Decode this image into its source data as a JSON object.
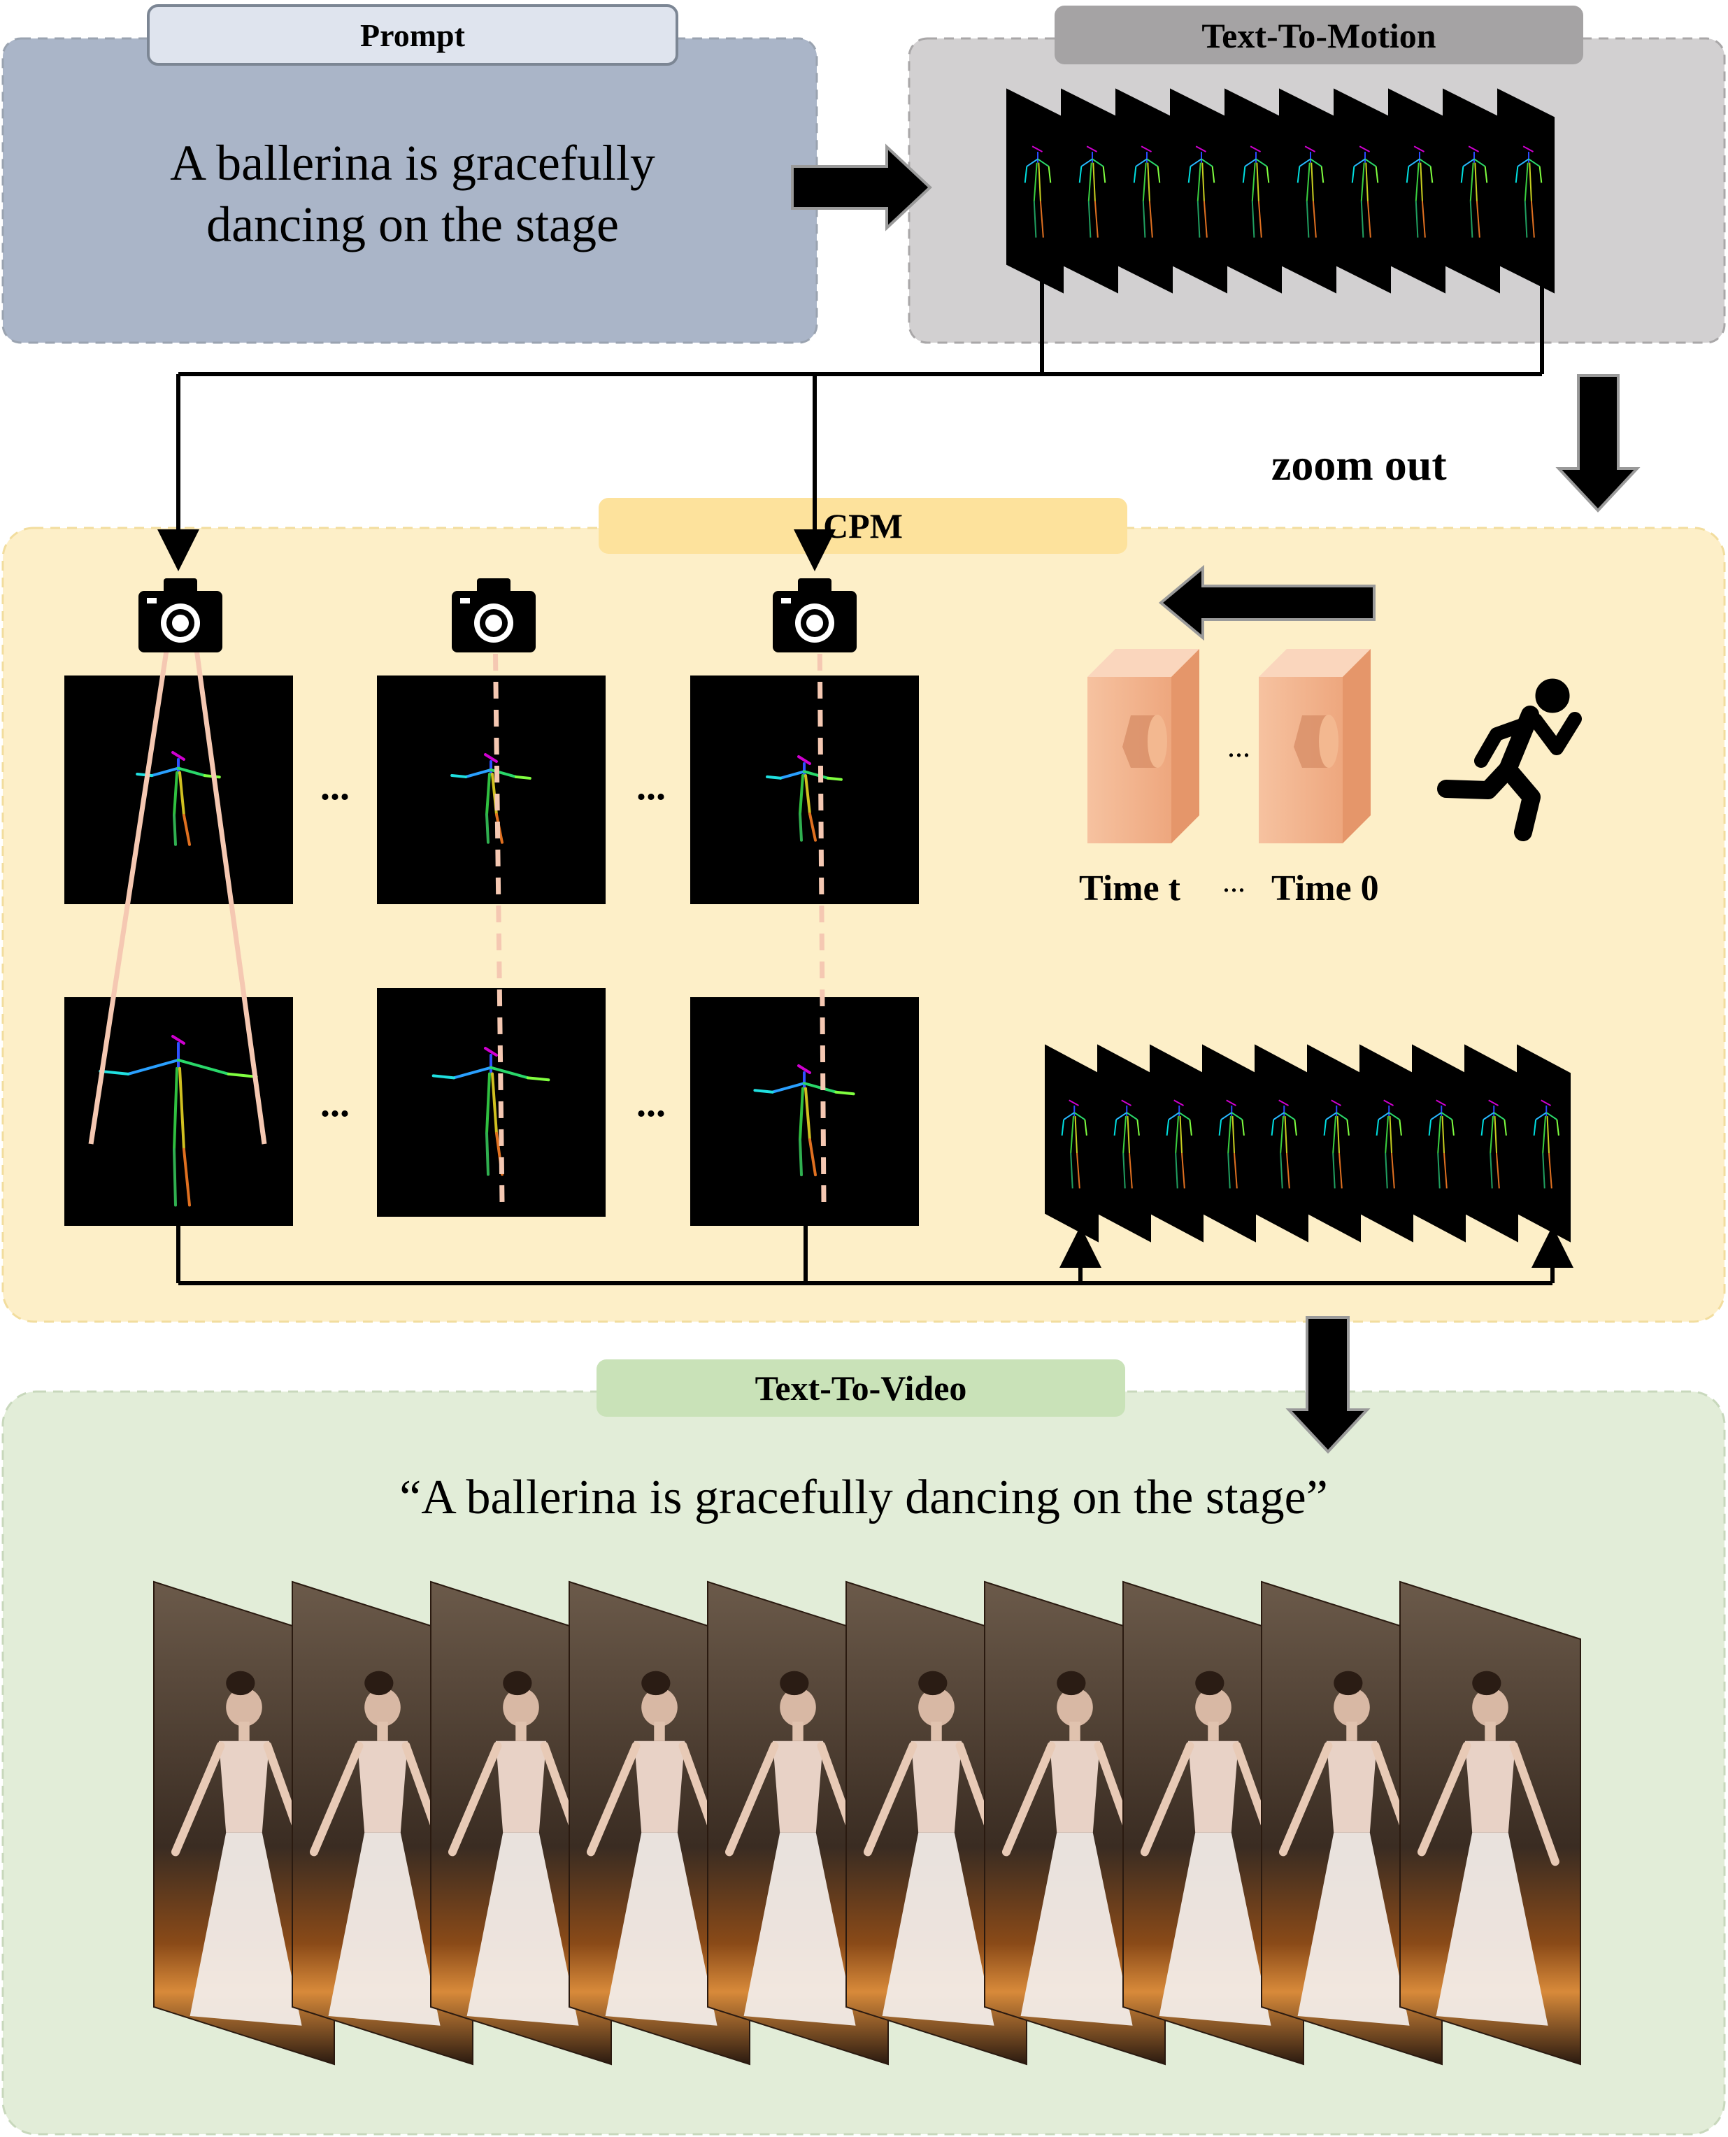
{
  "prompt_panel": {
    "title": "Prompt",
    "text_line1": "A ballerina is gracefully",
    "text_line2": "dancing on the stage"
  },
  "motion_panel": {
    "title": "Text-To-Motion",
    "frame_count": 10
  },
  "zoom": {
    "label": "zoom out"
  },
  "cpm_panel": {
    "title": "CPM",
    "ellipsis": "...",
    "camera_labels": [
      "Time t",
      "...",
      "Time 0"
    ],
    "frame_count": 10
  },
  "video_panel": {
    "title": "Text-To-Video",
    "caption": "“A ballerina is gracefully dancing on the stage”",
    "frame_count": 10
  },
  "colors": {
    "prompt_bg": "#aab5c8",
    "motion_bg": "#d2d0d1",
    "cpm_bg": "#fdefc8",
    "cpm_tab": "#fde29c",
    "video_bg": "#e2edd8",
    "video_tab": "#c9e2b8",
    "camera_box": "#f2b38e"
  },
  "icons": {
    "camera": "camera-icon",
    "runner": "running-person-icon",
    "arrow": "arrow-icon"
  }
}
